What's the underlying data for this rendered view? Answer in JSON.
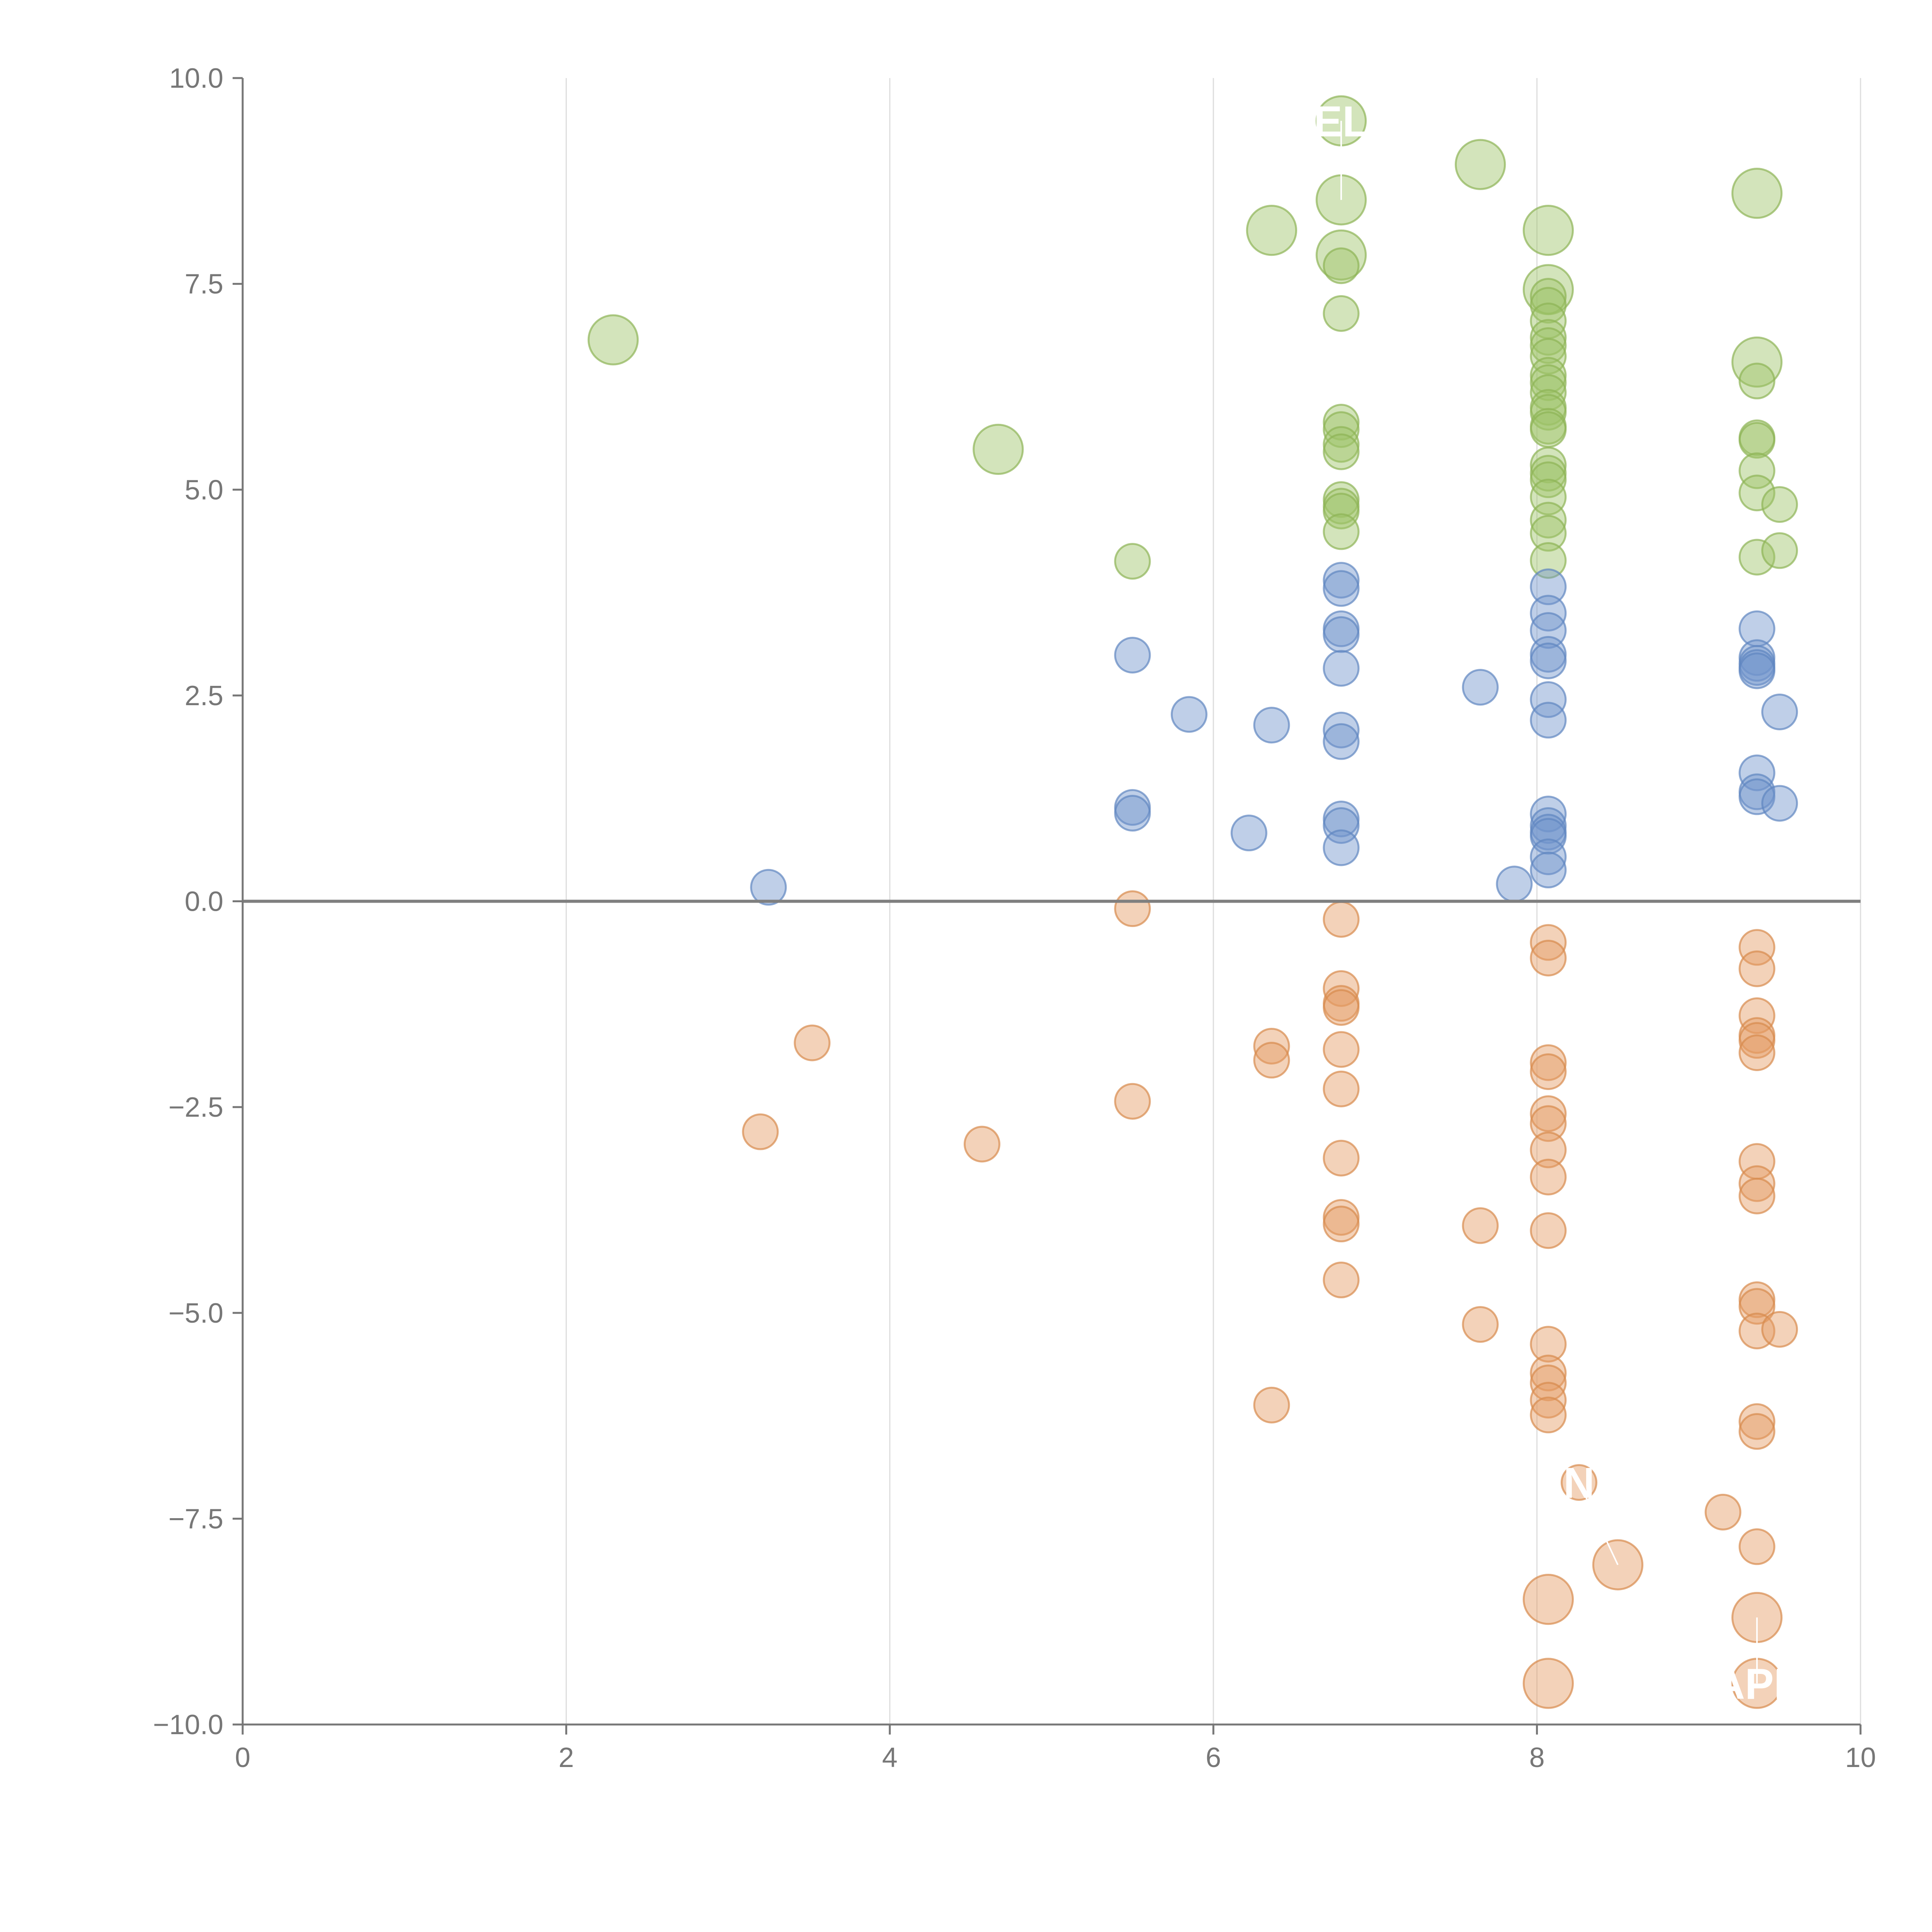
{
  "chart_data": {
    "type": "scatter",
    "title": "",
    "xlabel": "",
    "ylabel": "",
    "xlim": [
      0,
      10
    ],
    "ylim": [
      -10,
      10
    ],
    "grid": "vertical",
    "x_ticks": [
      0,
      2,
      4,
      6,
      8,
      10
    ],
    "x_tick_labels": [
      "0",
      "2",
      "4",
      "6",
      "8",
      "10"
    ],
    "y_ticks": [
      10,
      7.5,
      5,
      2.5,
      0,
      -2.5,
      -5,
      -7.5,
      -10
    ],
    "y_tick_labels": [
      "10.0",
      "7.5",
      "5.0",
      "2.5",
      "0.0",
      "−2.5",
      "−5.0",
      "−7.5",
      "−10.0"
    ],
    "reference_line_y": 0,
    "colors": {
      "green": "#9dc468",
      "green_edge": "#8db456",
      "blue": "#7295cc",
      "blue_edge": "#5f86c0",
      "orange": "#e49c63",
      "orange_edge": "#d78a4d",
      "axis": "#777777",
      "grid": "#dddddd",
      "zero_line": "#7f7f7f"
    },
    "series": [
      {
        "name": "green",
        "color": "#9dc468",
        "points": [
          {
            "x": 2.29,
            "y": 6.82,
            "s": 2.0
          },
          {
            "x": 4.67,
            "y": 5.49,
            "s": 2.0
          },
          {
            "x": 6.36,
            "y": 8.15,
            "s": 2.0
          },
          {
            "x": 6.79,
            "y": 9.48,
            "s": 2.0
          },
          {
            "x": 6.79,
            "y": 8.52,
            "s": 2.0
          },
          {
            "x": 6.79,
            "y": 7.85,
            "s": 2.0
          },
          {
            "x": 7.65,
            "y": 8.95,
            "s": 2.0
          },
          {
            "x": 8.07,
            "y": 8.15,
            "s": 2.0
          },
          {
            "x": 8.07,
            "y": 7.43,
            "s": 2.0
          },
          {
            "x": 9.36,
            "y": 8.6,
            "s": 2.0
          },
          {
            "x": 9.36,
            "y": 6.55,
            "s": 2.0
          },
          {
            "x": 5.5,
            "y": 4.13,
            "s": 1
          },
          {
            "x": 6.79,
            "y": 7.72,
            "s": 1
          },
          {
            "x": 6.79,
            "y": 7.14,
            "s": 1
          },
          {
            "x": 6.79,
            "y": 5.82,
            "s": 1
          },
          {
            "x": 6.79,
            "y": 5.73,
            "s": 1
          },
          {
            "x": 6.79,
            "y": 5.55,
            "s": 1
          },
          {
            "x": 6.79,
            "y": 5.46,
            "s": 1
          },
          {
            "x": 6.79,
            "y": 4.88,
            "s": 1
          },
          {
            "x": 6.79,
            "y": 4.8,
            "s": 1
          },
          {
            "x": 6.79,
            "y": 4.74,
            "s": 1
          },
          {
            "x": 6.79,
            "y": 4.49,
            "s": 1
          },
          {
            "x": 8.07,
            "y": 7.35,
            "s": 1
          },
          {
            "x": 8.07,
            "y": 7.24,
            "s": 1
          },
          {
            "x": 8.07,
            "y": 7.05,
            "s": 1
          },
          {
            "x": 8.07,
            "y": 6.85,
            "s": 1
          },
          {
            "x": 8.07,
            "y": 6.75,
            "s": 1
          },
          {
            "x": 8.07,
            "y": 6.62,
            "s": 1
          },
          {
            "x": 8.07,
            "y": 6.39,
            "s": 1
          },
          {
            "x": 8.07,
            "y": 6.3,
            "s": 1
          },
          {
            "x": 8.07,
            "y": 6.18,
            "s": 1
          },
          {
            "x": 8.07,
            "y": 6.0,
            "s": 1
          },
          {
            "x": 8.07,
            "y": 5.94,
            "s": 1
          },
          {
            "x": 8.07,
            "y": 5.77,
            "s": 1
          },
          {
            "x": 8.07,
            "y": 5.73,
            "s": 1
          },
          {
            "x": 8.07,
            "y": 5.3,
            "s": 1
          },
          {
            "x": 8.07,
            "y": 5.2,
            "s": 1
          },
          {
            "x": 8.07,
            "y": 5.12,
            "s": 1
          },
          {
            "x": 8.07,
            "y": 4.91,
            "s": 1
          },
          {
            "x": 8.07,
            "y": 4.63,
            "s": 1
          },
          {
            "x": 8.07,
            "y": 4.47,
            "s": 1
          },
          {
            "x": 8.07,
            "y": 4.14,
            "s": 1
          },
          {
            "x": 9.36,
            "y": 6.32,
            "s": 1
          },
          {
            "x": 9.36,
            "y": 5.63,
            "s": 1
          },
          {
            "x": 9.36,
            "y": 5.6,
            "s": 1
          },
          {
            "x": 9.36,
            "y": 5.23,
            "s": 1
          },
          {
            "x": 9.36,
            "y": 4.96,
            "s": 1
          },
          {
            "x": 9.36,
            "y": 4.18,
            "s": 1
          },
          {
            "x": 9.5,
            "y": 4.82,
            "s": 1
          },
          {
            "x": 9.5,
            "y": 4.26,
            "s": 1
          }
        ]
      },
      {
        "name": "blue",
        "color": "#7295cc",
        "points": [
          {
            "x": 3.25,
            "y": 0.17,
            "s": 1
          },
          {
            "x": 5.5,
            "y": 2.99,
            "s": 1
          },
          {
            "x": 5.5,
            "y": 1.14,
            "s": 1
          },
          {
            "x": 5.5,
            "y": 1.07,
            "s": 1
          },
          {
            "x": 5.85,
            "y": 2.27,
            "s": 1
          },
          {
            "x": 6.22,
            "y": 0.83,
            "s": 1
          },
          {
            "x": 6.36,
            "y": 2.14,
            "s": 1
          },
          {
            "x": 6.79,
            "y": 3.9,
            "s": 1
          },
          {
            "x": 6.79,
            "y": 3.8,
            "s": 1
          },
          {
            "x": 6.79,
            "y": 3.31,
            "s": 1
          },
          {
            "x": 6.79,
            "y": 3.24,
            "s": 1
          },
          {
            "x": 6.79,
            "y": 2.83,
            "s": 1
          },
          {
            "x": 6.79,
            "y": 2.08,
            "s": 1
          },
          {
            "x": 6.79,
            "y": 1.94,
            "s": 1
          },
          {
            "x": 6.79,
            "y": 1.0,
            "s": 1
          },
          {
            "x": 6.79,
            "y": 0.92,
            "s": 1
          },
          {
            "x": 6.79,
            "y": 0.65,
            "s": 1
          },
          {
            "x": 7.65,
            "y": 2.6,
            "s": 1
          },
          {
            "x": 7.86,
            "y": 0.21,
            "s": 1
          },
          {
            "x": 8.07,
            "y": 3.82,
            "s": 1
          },
          {
            "x": 8.07,
            "y": 3.5,
            "s": 1
          },
          {
            "x": 8.07,
            "y": 3.29,
            "s": 1
          },
          {
            "x": 8.07,
            "y": 3.0,
            "s": 1
          },
          {
            "x": 8.07,
            "y": 2.92,
            "s": 1
          },
          {
            "x": 8.07,
            "y": 2.45,
            "s": 1
          },
          {
            "x": 8.07,
            "y": 2.2,
            "s": 1
          },
          {
            "x": 8.07,
            "y": 1.06,
            "s": 1
          },
          {
            "x": 8.07,
            "y": 0.92,
            "s": 1
          },
          {
            "x": 8.07,
            "y": 0.84,
            "s": 1
          },
          {
            "x": 8.07,
            "y": 0.79,
            "s": 1
          },
          {
            "x": 8.07,
            "y": 0.54,
            "s": 1
          },
          {
            "x": 8.07,
            "y": 0.38,
            "s": 1
          },
          {
            "x": 9.36,
            "y": 3.31,
            "s": 1
          },
          {
            "x": 9.36,
            "y": 2.96,
            "s": 1
          },
          {
            "x": 9.36,
            "y": 2.89,
            "s": 1
          },
          {
            "x": 9.36,
            "y": 2.84,
            "s": 1
          },
          {
            "x": 9.36,
            "y": 2.8,
            "s": 1
          },
          {
            "x": 9.36,
            "y": 1.56,
            "s": 1
          },
          {
            "x": 9.36,
            "y": 1.33,
            "s": 1
          },
          {
            "x": 9.36,
            "y": 1.27,
            "s": 1
          },
          {
            "x": 9.5,
            "y": 2.3,
            "s": 1
          },
          {
            "x": 9.5,
            "y": 1.19,
            "s": 1
          }
        ]
      },
      {
        "name": "orange",
        "color": "#e49c63",
        "points": [
          {
            "x": 3.2,
            "y": -2.8,
            "s": 1
          },
          {
            "x": 3.52,
            "y": -1.72,
            "s": 1
          },
          {
            "x": 4.57,
            "y": -2.95,
            "s": 1
          },
          {
            "x": 5.5,
            "y": -0.09,
            "s": 1
          },
          {
            "x": 5.5,
            "y": -2.43,
            "s": 1
          },
          {
            "x": 6.36,
            "y": -1.76,
            "s": 1
          },
          {
            "x": 6.36,
            "y": -1.93,
            "s": 1
          },
          {
            "x": 6.36,
            "y": -6.12,
            "s": 1
          },
          {
            "x": 6.79,
            "y": -0.22,
            "s": 1
          },
          {
            "x": 6.79,
            "y": -1.06,
            "s": 1
          },
          {
            "x": 6.79,
            "y": -1.24,
            "s": 1
          },
          {
            "x": 6.79,
            "y": -1.29,
            "s": 1
          },
          {
            "x": 6.79,
            "y": -1.8,
            "s": 1
          },
          {
            "x": 6.79,
            "y": -2.28,
            "s": 1
          },
          {
            "x": 6.79,
            "y": -3.12,
            "s": 1
          },
          {
            "x": 6.79,
            "y": -3.84,
            "s": 1
          },
          {
            "x": 6.79,
            "y": -3.92,
            "s": 1
          },
          {
            "x": 6.79,
            "y": -4.6,
            "s": 1
          },
          {
            "x": 7.65,
            "y": -3.94,
            "s": 1
          },
          {
            "x": 7.65,
            "y": -5.14,
            "s": 1
          },
          {
            "x": 8.07,
            "y": -0.5,
            "s": 1
          },
          {
            "x": 8.07,
            "y": -0.69,
            "s": 1
          },
          {
            "x": 8.07,
            "y": -1.96,
            "s": 1
          },
          {
            "x": 8.07,
            "y": -2.07,
            "s": 1
          },
          {
            "x": 8.07,
            "y": -2.58,
            "s": 1
          },
          {
            "x": 8.07,
            "y": -2.7,
            "s": 1
          },
          {
            "x": 8.07,
            "y": -3.02,
            "s": 1
          },
          {
            "x": 8.07,
            "y": -3.35,
            "s": 1
          },
          {
            "x": 8.07,
            "y": -4.0,
            "s": 1
          },
          {
            "x": 8.07,
            "y": -5.38,
            "s": 1
          },
          {
            "x": 8.07,
            "y": -5.73,
            "s": 1
          },
          {
            "x": 8.07,
            "y": -5.85,
            "s": 1
          },
          {
            "x": 8.07,
            "y": -6.06,
            "s": 1
          },
          {
            "x": 8.07,
            "y": -6.24,
            "s": 1
          },
          {
            "x": 8.26,
            "y": -7.06,
            "s": 1
          },
          {
            "x": 9.15,
            "y": -7.42,
            "s": 1
          },
          {
            "x": 9.36,
            "y": -0.56,
            "s": 1
          },
          {
            "x": 9.36,
            "y": -0.82,
            "s": 1
          },
          {
            "x": 9.36,
            "y": -1.39,
            "s": 1
          },
          {
            "x": 9.36,
            "y": -1.63,
            "s": 1
          },
          {
            "x": 9.36,
            "y": -1.69,
            "s": 1
          },
          {
            "x": 9.36,
            "y": -1.84,
            "s": 1
          },
          {
            "x": 9.36,
            "y": -3.16,
            "s": 1
          },
          {
            "x": 9.36,
            "y": -3.43,
            "s": 1
          },
          {
            "x": 9.36,
            "y": -3.58,
            "s": 1
          },
          {
            "x": 9.36,
            "y": -4.84,
            "s": 1
          },
          {
            "x": 9.36,
            "y": -4.92,
            "s": 1
          },
          {
            "x": 9.36,
            "y": -5.22,
            "s": 1
          },
          {
            "x": 9.36,
            "y": -6.32,
            "s": 1
          },
          {
            "x": 9.36,
            "y": -6.44,
            "s": 1
          },
          {
            "x": 9.36,
            "y": -7.84,
            "s": 1
          },
          {
            "x": 9.5,
            "y": -5.2,
            "s": 1
          },
          {
            "x": 8.5,
            "y": -8.06,
            "s": 2.0
          },
          {
            "x": 8.07,
            "y": -8.48,
            "s": 2.0
          },
          {
            "x": 8.07,
            "y": -9.5,
            "s": 2.0
          },
          {
            "x": 9.36,
            "y": -8.7,
            "s": 2.0
          },
          {
            "x": 9.36,
            "y": -9.5,
            "s": 2.0
          }
        ]
      }
    ],
    "annotations": [
      {
        "text": "EL",
        "x": 6.79,
        "y": 9.48,
        "lx": 6.79,
        "ly": 8.52
      },
      {
        "text": "N",
        "x": 8.26,
        "y": -7.06,
        "lx": 8.5,
        "ly": -8.06
      },
      {
        "text": "APF",
        "x": 9.36,
        "y": -9.5,
        "lx": 9.36,
        "ly": -8.7
      }
    ]
  }
}
